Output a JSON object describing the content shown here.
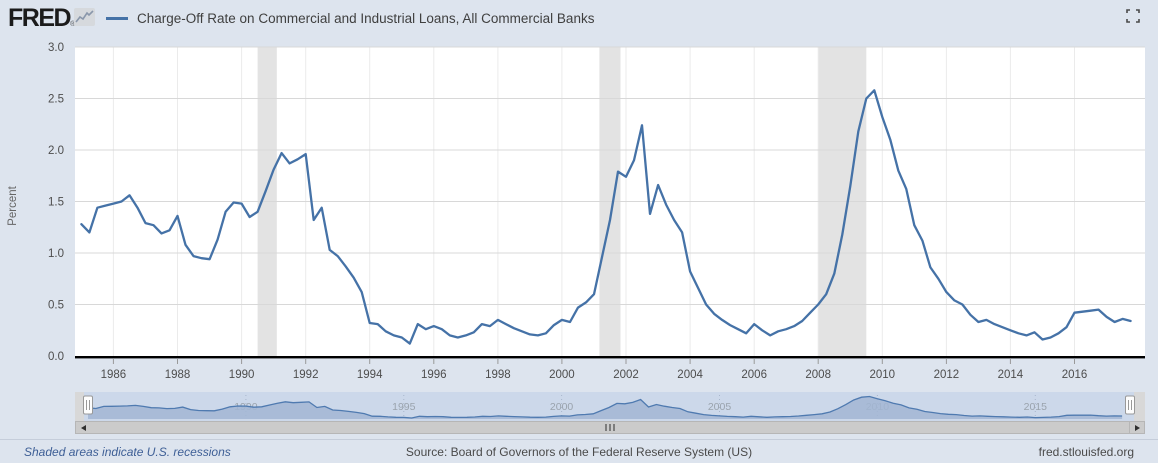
{
  "header": {
    "logo": "FRED",
    "registered": "®",
    "title": "Charge-Off Rate on Commercial and Industrial Loans, All Commercial Banks"
  },
  "y_axis": {
    "title": "Percent",
    "ticks": [
      "3.0",
      "2.5",
      "2.0",
      "1.5",
      "1.0",
      "0.5",
      "0.0"
    ],
    "tick_values": [
      3.0,
      2.5,
      2.0,
      1.5,
      1.0,
      0.5,
      0.0
    ]
  },
  "x_axis": {
    "ticks": [
      1986,
      1988,
      1990,
      1992,
      1994,
      1996,
      1998,
      2000,
      2002,
      2004,
      2006,
      2008,
      2010,
      2012,
      2014,
      2016
    ]
  },
  "navigator": {
    "labels": [
      1990,
      1995,
      2000,
      2005,
      2010,
      2015
    ],
    "range": [
      1985,
      2018
    ],
    "max_value": 2.75
  },
  "footer": {
    "recession_note": "Shaded areas indicate U.S. recessions",
    "source": "Source: Board of Governors of the Federal Reserve System (US)",
    "site": "fred.stlouisfed.org"
  },
  "colors": {
    "background": "#dde4ee",
    "plot_bg": "#ffffff",
    "line": "#4572a7",
    "grid": "#d8d8d8",
    "vgrid": "#ebebeb",
    "recession": "#e3e3e3",
    "axis": "#000000",
    "tick_label": "#4d4d4d",
    "axis_title": "#666666",
    "nav_bg": "#ccd8ea",
    "nav_outside": "#d8d8d8",
    "nav_fill": "#a2b6d4",
    "nav_line": "#4f7ab0",
    "nav_label": "#9aa3ad",
    "nav_grid": "#a8b6cc",
    "handle_fill": "#fdfdfd",
    "handle_stroke": "#999999"
  },
  "chart_data": {
    "type": "line",
    "title": "Charge-Off Rate on Commercial and Industrial Loans, All Commercial Banks",
    "ylabel": "Percent",
    "xlabel": "",
    "frequency": "quarterly",
    "x_start": 1985.0,
    "x_step": 0.25,
    "xlim": [
      1984.8,
      2018.2
    ],
    "ylim": [
      0,
      3.0
    ],
    "grid": true,
    "legend_position": "top",
    "recessions": [
      [
        1990.5,
        1991.1
      ],
      [
        2001.17,
        2001.83
      ],
      [
        2008.0,
        2009.5
      ]
    ],
    "values": [
      1.28,
      1.2,
      1.44,
      1.46,
      1.48,
      1.5,
      1.56,
      1.44,
      1.29,
      1.27,
      1.19,
      1.22,
      1.36,
      1.08,
      0.97,
      0.95,
      0.94,
      1.13,
      1.4,
      1.49,
      1.48,
      1.35,
      1.4,
      1.6,
      1.81,
      1.97,
      1.87,
      1.91,
      1.96,
      1.32,
      1.44,
      1.03,
      0.97,
      0.87,
      0.76,
      0.62,
      0.32,
      0.31,
      0.24,
      0.2,
      0.18,
      0.12,
      0.31,
      0.26,
      0.29,
      0.26,
      0.2,
      0.18,
      0.2,
      0.23,
      0.31,
      0.29,
      0.35,
      0.31,
      0.27,
      0.24,
      0.21,
      0.2,
      0.22,
      0.3,
      0.35,
      0.33,
      0.47,
      0.52,
      0.6,
      0.96,
      1.32,
      1.79,
      1.74,
      1.9,
      2.24,
      1.38,
      1.66,
      1.47,
      1.32,
      1.2,
      0.82,
      0.66,
      0.5,
      0.41,
      0.35,
      0.3,
      0.26,
      0.22,
      0.31,
      0.25,
      0.2,
      0.24,
      0.26,
      0.29,
      0.34,
      0.42,
      0.5,
      0.6,
      0.8,
      1.18,
      1.65,
      2.18,
      2.5,
      2.58,
      2.32,
      2.1,
      1.8,
      1.62,
      1.27,
      1.12,
      0.86,
      0.75,
      0.62,
      0.54,
      0.5,
      0.4,
      0.33,
      0.35,
      0.31,
      0.28,
      0.25,
      0.22,
      0.2,
      0.23,
      0.16,
      0.18,
      0.22,
      0.28,
      0.42,
      0.43,
      0.44,
      0.45,
      0.38,
      0.33,
      0.36,
      0.34
    ]
  }
}
